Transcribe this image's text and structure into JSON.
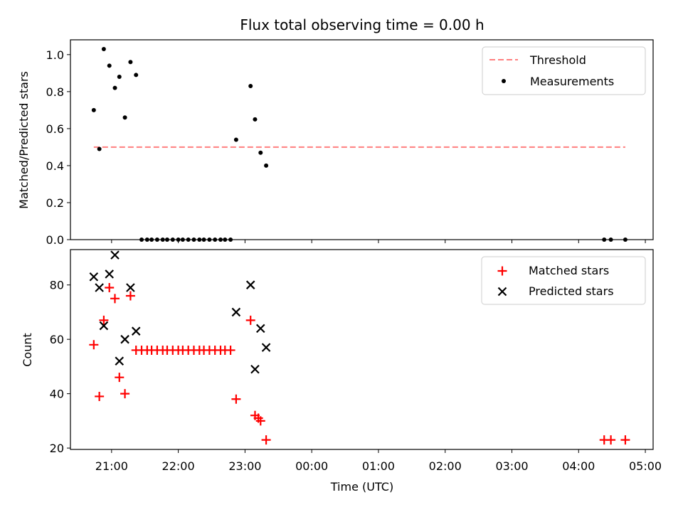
{
  "chart_data": [
    {
      "type": "scatter",
      "title": "Flux total observing time = 0.00 h",
      "xlabel": "",
      "ylabel": "Matched/Predicted stars",
      "ylim": [
        0,
        1.08
      ],
      "yticks": [
        "0.0",
        "0.2",
        "0.4",
        "0.6",
        "0.8",
        "1.0"
      ],
      "ytick_values": [
        0,
        0.2,
        0.4,
        0.6,
        0.8,
        1.0
      ],
      "legend": {
        "placement": "top-right",
        "entries": [
          "Threshold",
          "Measurements"
        ]
      },
      "threshold": {
        "name": "Threshold",
        "value": 0.5,
        "x_start": "20:44",
        "x_end": "04:42",
        "color": "#ff7f7f"
      },
      "series": [
        {
          "name": "Measurements",
          "color": "#000000",
          "points": [
            [
              "20:44",
              0.7
            ],
            [
              "20:49",
              0.49
            ],
            [
              "20:53",
              1.03
            ],
            [
              "20:58",
              0.94
            ],
            [
              "21:03",
              0.82
            ],
            [
              "21:07",
              0.88
            ],
            [
              "21:12",
              0.66
            ],
            [
              "21:17",
              0.96
            ],
            [
              "21:22",
              0.89
            ],
            [
              "21:27",
              0.0
            ],
            [
              "21:32",
              0.0
            ],
            [
              "21:36",
              0.0
            ],
            [
              "21:41",
              0.0
            ],
            [
              "21:46",
              0.0
            ],
            [
              "21:50",
              0.0
            ],
            [
              "21:55",
              0.0
            ],
            [
              "22:00",
              0.0
            ],
            [
              "22:04",
              0.0
            ],
            [
              "22:09",
              0.0
            ],
            [
              "22:14",
              0.0
            ],
            [
              "22:19",
              0.0
            ],
            [
              "22:23",
              0.0
            ],
            [
              "22:28",
              0.0
            ],
            [
              "22:33",
              0.0
            ],
            [
              "22:38",
              0.0
            ],
            [
              "22:42",
              0.0
            ],
            [
              "22:47",
              0.0
            ],
            [
              "22:52",
              0.54
            ],
            [
              "23:05",
              0.83
            ],
            [
              "23:09",
              0.65
            ],
            [
              "23:14",
              0.47
            ],
            [
              "23:19",
              0.4
            ],
            [
              "04:23",
              0.0
            ],
            [
              "04:29",
              0.0
            ],
            [
              "04:42",
              0.0
            ]
          ]
        }
      ]
    },
    {
      "type": "scatter",
      "title": "",
      "xlabel": "Time (UTC)",
      "ylabel": "Count",
      "ylim": [
        19.5,
        93
      ],
      "yticks": [
        "20",
        "40",
        "60",
        "80"
      ],
      "ytick_values": [
        20,
        40,
        60,
        80
      ],
      "xticks": [
        "21:00",
        "22:00",
        "23:00",
        "00:00",
        "01:00",
        "02:00",
        "03:00",
        "04:00",
        "05:00"
      ],
      "xtick_values": [
        "21:00",
        "22:00",
        "23:00",
        "00:00",
        "01:00",
        "02:00",
        "03:00",
        "04:00",
        "05:00"
      ],
      "xlim": [
        "20:23",
        "05:07"
      ],
      "legend": {
        "placement": "top-right",
        "entries": [
          "Matched stars",
          "Predicted stars"
        ]
      },
      "series": [
        {
          "name": "Matched stars",
          "marker": "plus",
          "color": "#ff0000",
          "points": [
            [
              "20:44",
              58
            ],
            [
              "20:49",
              39
            ],
            [
              "20:53",
              67
            ],
            [
              "20:58",
              79
            ],
            [
              "21:03",
              75
            ],
            [
              "21:07",
              46
            ],
            [
              "21:12",
              40
            ],
            [
              "21:17",
              76
            ],
            [
              "21:22",
              56
            ],
            [
              "21:27",
              56
            ],
            [
              "21:32",
              56
            ],
            [
              "21:36",
              56
            ],
            [
              "21:41",
              56
            ],
            [
              "21:46",
              56
            ],
            [
              "21:50",
              56
            ],
            [
              "21:55",
              56
            ],
            [
              "22:00",
              56
            ],
            [
              "22:04",
              56
            ],
            [
              "22:09",
              56
            ],
            [
              "22:14",
              56
            ],
            [
              "22:19",
              56
            ],
            [
              "22:23",
              56
            ],
            [
              "22:28",
              56
            ],
            [
              "22:33",
              56
            ],
            [
              "22:38",
              56
            ],
            [
              "22:42",
              56
            ],
            [
              "22:47",
              56
            ],
            [
              "22:52",
              38
            ],
            [
              "23:05",
              67
            ],
            [
              "23:09",
              32
            ],
            [
              "23:12",
              31
            ],
            [
              "23:14",
              30
            ],
            [
              "23:19",
              23
            ],
            [
              "04:23",
              23
            ],
            [
              "04:29",
              23
            ],
            [
              "04:42",
              23
            ]
          ]
        },
        {
          "name": "Predicted stars",
          "marker": "x",
          "color": "#000000",
          "points": [
            [
              "20:44",
              83
            ],
            [
              "20:49",
              79
            ],
            [
              "20:53",
              65
            ],
            [
              "20:58",
              84
            ],
            [
              "21:03",
              91
            ],
            [
              "21:07",
              52
            ],
            [
              "21:12",
              60
            ],
            [
              "21:17",
              79
            ],
            [
              "21:22",
              63
            ],
            [
              "22:52",
              70
            ],
            [
              "23:05",
              80
            ],
            [
              "23:09",
              49
            ],
            [
              "23:14",
              64
            ],
            [
              "23:19",
              57
            ]
          ]
        }
      ]
    }
  ]
}
